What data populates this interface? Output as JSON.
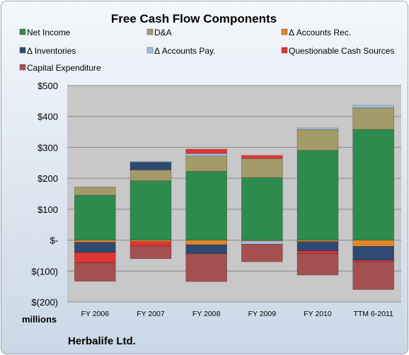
{
  "chart_data": {
    "type": "bar",
    "stacked": true,
    "title": "Free Cash Flow Components",
    "unit_label": "millions",
    "company_label": "Herbalife Ltd.",
    "categories": [
      "FY 2006",
      "FY 2007",
      "FY 2008",
      "FY 2009",
      "FY 2010",
      "TTM 6-2011"
    ],
    "ylim": [
      -200,
      500
    ],
    "yticks": [
      500,
      400,
      300,
      200,
      100,
      0,
      -100,
      -200
    ],
    "ytick_labels": [
      "$500",
      "$400",
      "$300",
      "$200",
      "$100",
      "$-",
      "$(100)",
      "$(200)"
    ],
    "grid": true,
    "legend_position": "top",
    "series": [
      {
        "name": "Net Income",
        "color": "#2e8b4e",
        "values": [
          145,
          192,
          222,
          202,
          290,
          358
        ]
      },
      {
        "name": "D&A",
        "color": "#a39a67",
        "values": [
          27,
          35,
          50,
          62,
          68,
          70
        ]
      },
      {
        "name": "Δ Accounts Rec.",
        "color": "#e0872a",
        "values": [
          -7,
          -5,
          -15,
          -3,
          -5,
          -20
        ]
      },
      {
        "name": "Δ Inventories",
        "color": "#2e4a72",
        "values": [
          -33,
          25,
          -29,
          0,
          -30,
          -45
        ]
      },
      {
        "name": "Δ Accounts Pay.",
        "color": "#9ec2e6",
        "values": [
          0,
          2,
          8,
          -10,
          5,
          8
        ]
      },
      {
        "name": "Questionable Cash Sources",
        "color": "#e03535",
        "values": [
          -33,
          -14,
          14,
          10,
          -8,
          -5
        ]
      },
      {
        "name": "Capital Expenditure",
        "color": "#a35050",
        "values": [
          -60,
          -41,
          -90,
          -57,
          -70,
          -90
        ]
      }
    ]
  }
}
